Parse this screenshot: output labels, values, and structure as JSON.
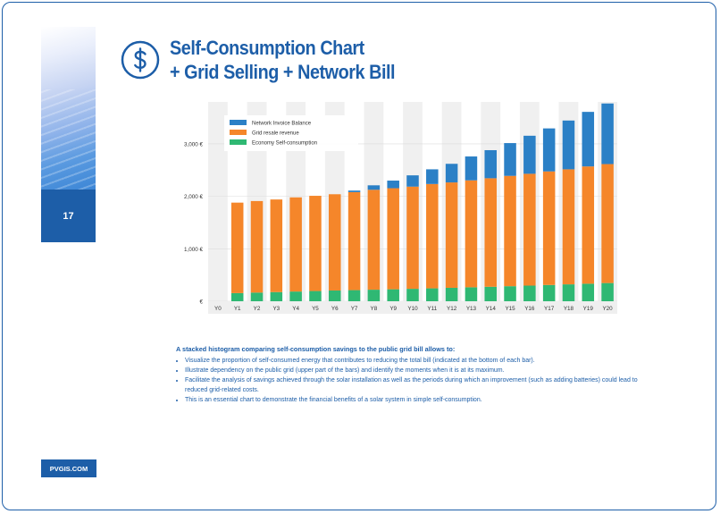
{
  "page": {
    "number": "17",
    "brand": "PVGIS.COM"
  },
  "title": {
    "line1": "Self-Consumption Chart",
    "line2": "+ Grid Selling + Network Bill"
  },
  "icon": {
    "dollar": "dollar-icon"
  },
  "colors": {
    "brand": "#1d5ea8",
    "network": "#2b80c6",
    "resale": "#f5862a",
    "economy": "#2fb873",
    "grid_band": "#f0f0f0",
    "axis_label": "#333333"
  },
  "chart_data": {
    "type": "bar",
    "stacked": true,
    "title": "",
    "xlabel": "",
    "ylabel": "",
    "ylim": [
      0,
      3800
    ],
    "ytick_values": [
      0,
      1000,
      2000,
      3000
    ],
    "ytick_labels": [
      "€",
      "1,000 €",
      "2,000 €",
      "3,000 €"
    ],
    "categories": [
      "Y0",
      "Y1",
      "Y2",
      "Y3",
      "Y4",
      "Y5",
      "Y6",
      "Y7",
      "Y8",
      "Y9",
      "Y10",
      "Y11",
      "Y12",
      "Y13",
      "Y14",
      "Y15",
      "Y16",
      "Y17",
      "Y18",
      "Y19",
      "Y20"
    ],
    "legend_position": "top-left",
    "series": [
      {
        "name": "Economy Self-consumption",
        "color": "#2fb873",
        "values": [
          0,
          155,
          165,
          175,
          185,
          195,
          205,
          212,
          220,
          228,
          237,
          246,
          256,
          266,
          276,
          287,
          298,
          310,
          322,
          334,
          347
        ]
      },
      {
        "name": "Grid resale revenue",
        "color": "#f5862a",
        "values": [
          0,
          1725,
          1745,
          1765,
          1795,
          1815,
          1835,
          1868,
          1905,
          1927,
          1948,
          1989,
          2009,
          2039,
          2069,
          2103,
          2132,
          2165,
          2193,
          2236,
          2268
        ]
      },
      {
        "name": "Network Invoice Balance",
        "color": "#2b80c6",
        "values": [
          0,
          0,
          0,
          0,
          0,
          0,
          0,
          30,
          85,
          145,
          215,
          280,
          355,
          455,
          535,
          625,
          725,
          820,
          930,
          1040,
          1155
        ]
      }
    ],
    "legend_order": [
      "Network Invoice Balance",
      "Grid resale revenue",
      "Economy Self-consumption"
    ]
  },
  "description": {
    "heading": "A stacked histogram comparing self-consumption savings to the public grid bill allows to:",
    "bullets": [
      "Visualize the proportion of self-consumed energy that contributes to reducing the total bill (indicated at the bottom of each bar).",
      "Illustrate dependency on the public grid (upper part of the bars) and identify the moments when it is at its maximum.",
      "Facilitate the analysis of savings achieved through the solar installation as well as the periods during which an improvement (such as adding batteries) could lead to reduced grid-related costs.",
      "This is an essential chart to demonstrate the financial benefits of a solar system in simple self-consumption."
    ]
  }
}
